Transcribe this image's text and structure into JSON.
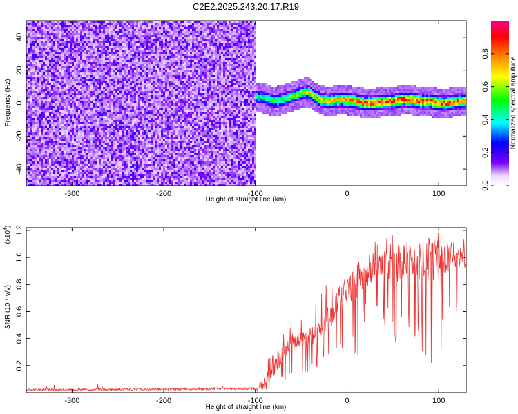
{
  "figure_title": "C2E2.2025.243.20.17.R19",
  "chart_data": [
    {
      "type": "heatmap",
      "title": "C2E2.2025.243.20.17.R19",
      "xlabel": "Height of straight line (km)",
      "ylabel": "Frequency (Hz)",
      "xlim": [
        -350,
        130
      ],
      "ylim": [
        -50,
        50
      ],
      "x_ticks": [
        -300,
        -200,
        -100,
        0,
        100
      ],
      "y_ticks": [
        -40,
        -20,
        0,
        20,
        40
      ],
      "colorbar": {
        "label": "Normalized spectral amplitude",
        "range": [
          0,
          1
        ],
        "ticks": [
          0.0,
          0.2,
          0.4,
          0.6,
          0.8
        ],
        "colormap": [
          "#ffffff",
          "#7700ff",
          "#0000ff",
          "#00ffff",
          "#00ff00",
          "#ffff00",
          "#ff8800",
          "#ff0000",
          "#ff0088"
        ]
      },
      "noise_region_x": [
        -350,
        -100
      ],
      "noise_level": 0.18,
      "signal_track": {
        "x": [
          -108,
          -100,
          -90,
          -80,
          -70,
          -60,
          -50,
          -42,
          -35,
          -28,
          -20,
          -10,
          0,
          10,
          20,
          30,
          40,
          50,
          60,
          70,
          80,
          90,
          100,
          110,
          120,
          130
        ],
        "freq_hz": [
          5,
          4,
          3,
          1,
          2,
          4,
          6,
          7,
          4,
          2,
          1,
          2,
          2,
          1,
          0,
          0,
          1,
          1,
          2,
          2,
          1,
          1,
          0,
          0,
          1,
          1
        ],
        "peak_amplitude": [
          0.4,
          0.45,
          0.5,
          0.55,
          0.55,
          0.6,
          0.65,
          0.7,
          0.7,
          0.75,
          0.75,
          0.8,
          0.85,
          0.85,
          0.9,
          0.9,
          0.9,
          0.9,
          0.95,
          0.95,
          0.9,
          0.9,
          0.9,
          0.9,
          0.85,
          0.85
        ]
      }
    },
    {
      "type": "line",
      "title": "",
      "xlabel": "Height of straight line (km)",
      "ylabel": "SNR (10 * v/v)",
      "y_multiplier": "(x10",
      "y_multiplier_exp": "4",
      "y_multiplier_close": ")",
      "xlim": [
        -350,
        130
      ],
      "ylim": [
        0,
        12200
      ],
      "x_ticks": [
        -300,
        -200,
        -100,
        0,
        100
      ],
      "y_ticks": [
        0.2,
        0.4,
        0.6,
        0.8,
        1.0,
        1.2
      ],
      "series": [
        {
          "name": "SNR",
          "color": "#ee3333",
          "envelope": {
            "x": [
              -350,
              -100,
              -90,
              -80,
              -70,
              -60,
              -50,
              -40,
              -30,
              -20,
              -10,
              0,
              10,
              20,
              30,
              40,
              50,
              60,
              70,
              80,
              90,
              100,
              110,
              120,
              130
            ],
            "mean": [
              200,
              300,
              800,
              1800,
              2800,
              3500,
              3700,
              4200,
              4800,
              5600,
              6800,
              7500,
              8300,
              8600,
              9000,
              9300,
              9500,
              9700,
              9600,
              9700,
              9900,
              10000,
              10100,
              10200,
              10300
            ],
            "max": [
              300,
              600,
              2000,
              3500,
              4800,
              5200,
              5600,
              6300,
              7000,
              8500,
              8800,
              9200,
              10000,
              10500,
              11200,
              11500,
              11800,
              11800,
              11500,
              11300,
              11500,
              11600,
              11700,
              11800,
              11900
            ],
            "min": [
              100,
              100,
              100,
              300,
              600,
              1000,
              1200,
              1500,
              2000,
              2200,
              3000,
              3500,
              2200,
              5500,
              6000,
              5000,
              3500,
              4000,
              4500,
              3000,
              1500,
              1200,
              4500,
              5500,
              6000
            ]
          }
        }
      ]
    }
  ]
}
